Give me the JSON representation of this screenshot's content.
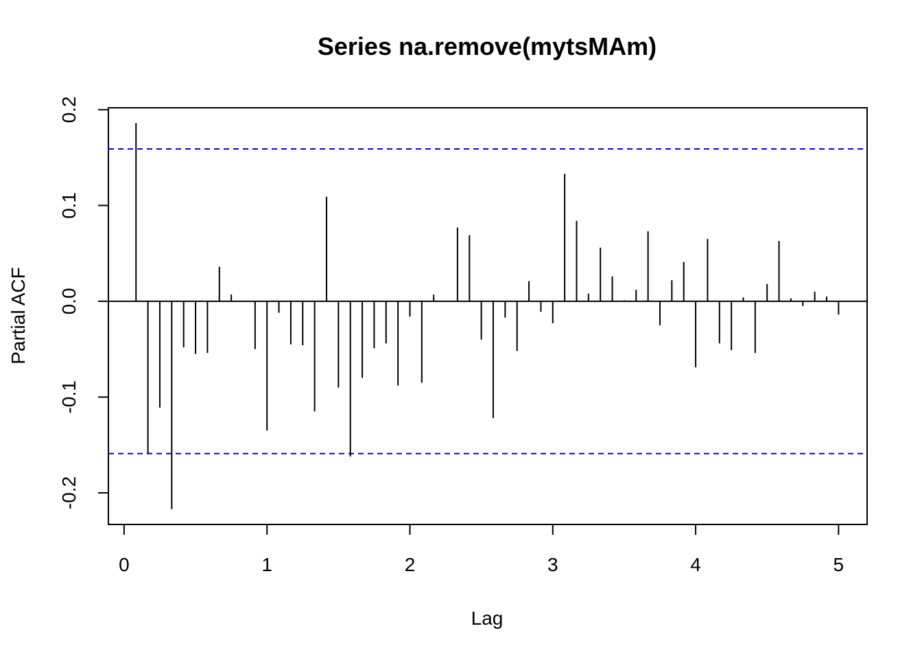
{
  "chart_data": {
    "type": "bar",
    "subtype": "pacf-lollipop",
    "title": "Series  na.remove(mytsMAm)",
    "xlabel": "Lag",
    "ylabel": "Partial ACF",
    "xlim": [
      -0.11,
      5.2
    ],
    "ylim": [
      -0.233,
      0.202
    ],
    "x_ticks": [
      0,
      1,
      2,
      3,
      4,
      5
    ],
    "x_tick_labels": [
      "0",
      "1",
      "2",
      "3",
      "4",
      "5"
    ],
    "y_ticks": [
      -0.2,
      -0.1,
      0.0,
      0.1,
      0.2
    ],
    "y_tick_labels": [
      "-0.2",
      "-0.1",
      "0.0",
      "0.1",
      "0.2"
    ],
    "confidence_bounds": [
      0.159,
      -0.159
    ],
    "bound_color": "#0000ff",
    "line_color": "#000000",
    "x": [
      0.0833,
      0.1667,
      0.25,
      0.3333,
      0.4167,
      0.5,
      0.5833,
      0.6667,
      0.75,
      0.8333,
      0.9167,
      1.0,
      1.0833,
      1.1667,
      1.25,
      1.3333,
      1.4167,
      1.5,
      1.5833,
      1.6667,
      1.75,
      1.8333,
      1.9167,
      2.0,
      2.0833,
      2.1667,
      2.25,
      2.3333,
      2.4167,
      2.5,
      2.5833,
      2.6667,
      2.75,
      2.8333,
      2.9167,
      3.0,
      3.0833,
      3.1667,
      3.25,
      3.3333,
      3.4167,
      3.5,
      3.5833,
      3.6667,
      3.75,
      3.8333,
      3.9167,
      4.0,
      4.0833,
      4.1667,
      4.25,
      4.3333,
      4.4167,
      4.5,
      4.5833,
      4.6667,
      4.75,
      4.8333,
      4.9167,
      5.0
    ],
    "values": [
      0.186,
      -0.159,
      -0.111,
      -0.217,
      -0.048,
      -0.055,
      -0.054,
      0.036,
      0.007,
      0.0,
      -0.05,
      -0.135,
      -0.012,
      -0.045,
      -0.046,
      -0.115,
      0.109,
      -0.09,
      -0.162,
      -0.08,
      -0.049,
      -0.044,
      -0.088,
      -0.016,
      -0.085,
      0.007,
      0.0,
      0.077,
      0.069,
      -0.04,
      -0.122,
      -0.017,
      -0.052,
      0.021,
      -0.011,
      -0.023,
      0.133,
      0.084,
      0.008,
      0.056,
      0.026,
      0.001,
      0.012,
      0.073,
      -0.025,
      0.022,
      0.041,
      -0.069,
      0.065,
      -0.044,
      -0.051,
      0.004,
      -0.054,
      0.018,
      0.063,
      0.003,
      -0.005,
      0.01,
      0.005,
      -0.014
    ]
  }
}
